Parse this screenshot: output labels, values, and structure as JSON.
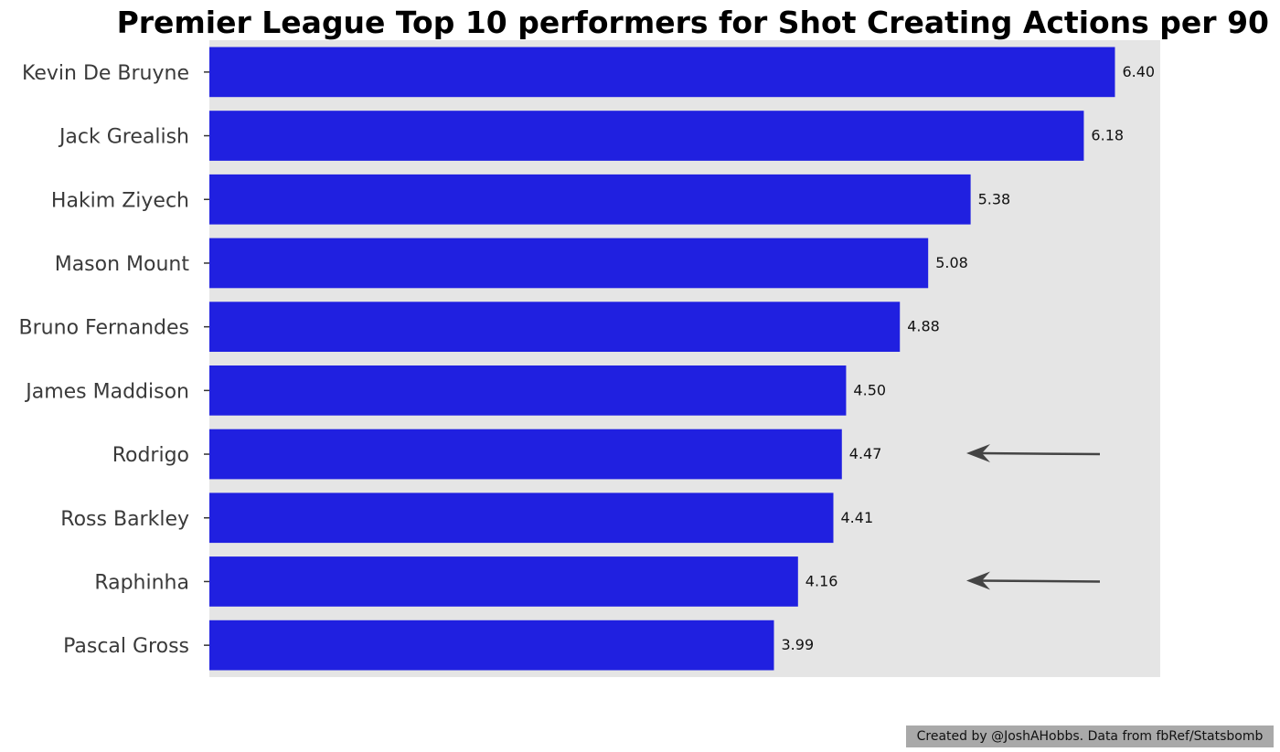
{
  "chart_data": {
    "type": "bar",
    "orientation": "horizontal",
    "title": "Premier League Top 10 performers for Shot Creating Actions per 90",
    "xlabel": "",
    "ylabel": "",
    "categories": [
      "Kevin De Bruyne",
      "Jack Grealish",
      "Hakim Ziyech",
      "Mason Mount",
      "Bruno Fernandes",
      "James Maddison",
      "Rodrigo",
      "Ross Barkley",
      "Raphinha",
      "Pascal Gross"
    ],
    "values": [
      6.4,
      6.18,
      5.38,
      5.08,
      4.88,
      4.5,
      4.47,
      4.41,
      4.16,
      3.99
    ],
    "value_labels": [
      "6.40",
      "6.18",
      "5.38",
      "5.08",
      "4.88",
      "4.50",
      "4.47",
      "4.41",
      "4.16",
      "3.99"
    ],
    "xlim": [
      0,
      6.72
    ],
    "grid": false,
    "bar_color": "#2020e0",
    "plot_background": "#e5e5e5",
    "annotations": [
      {
        "type": "arrow",
        "points_to": "Rodrigo"
      },
      {
        "type": "arrow",
        "points_to": "Raphinha"
      }
    ]
  },
  "footer": {
    "credit": "Created by @JoshAHobbs. Data from fbRef/Statsbomb"
  }
}
